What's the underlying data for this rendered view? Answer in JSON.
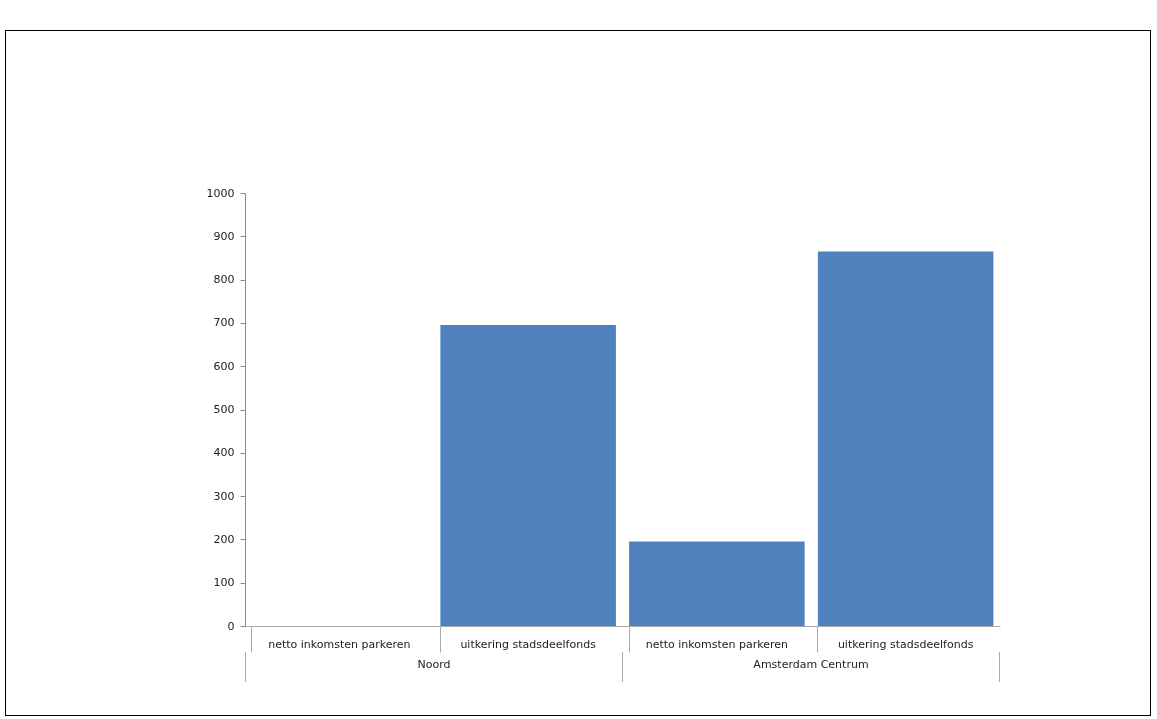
{
  "chart_data": {
    "type": "bar",
    "categories": [
      "netto inkomsten parkeren",
      "uitkering stadsdeelfonds",
      "netto inkomsten parkeren",
      "uitkering stadsdeelfonds"
    ],
    "values": [
      0,
      695,
      195,
      865
    ],
    "color": "#4f81bd",
    "ylim": [
      0,
      1000
    ],
    "yticks": [
      0,
      100,
      200,
      300,
      400,
      500,
      600,
      700,
      800,
      900,
      1000
    ],
    "grid": false,
    "annotations": [
      "Noord",
      "Amsterdam Centrum"
    ]
  }
}
